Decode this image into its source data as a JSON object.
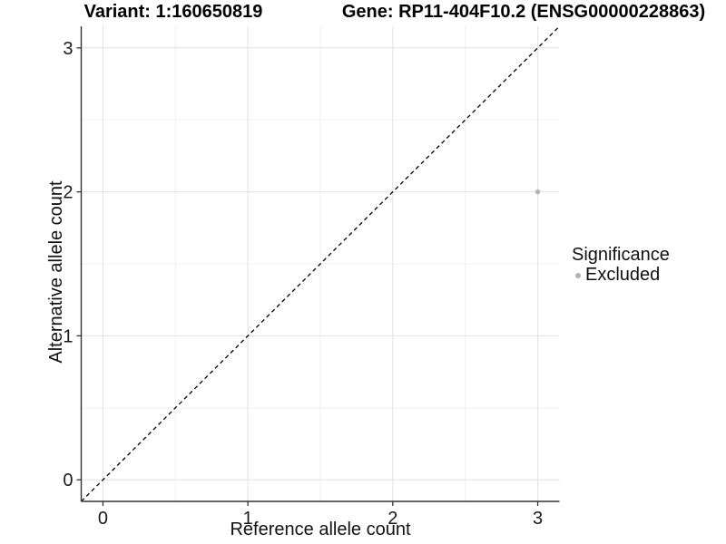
{
  "header": {
    "variant_title": "Variant: 1:160650819",
    "gene_title": "Gene: RP11-404F10.2 (ENSG00000228863)"
  },
  "chart_data": {
    "type": "scatter",
    "xlabel": "Reference allele count",
    "ylabel": "Alternative allele count",
    "xlim": [
      -0.15,
      3.15
    ],
    "ylim": [
      -0.15,
      3.15
    ],
    "x_ticks": [
      0,
      1,
      2,
      3
    ],
    "y_ticks": [
      0,
      1,
      2,
      3
    ],
    "x_minor_ticks": [
      0.5,
      1.5,
      2.5
    ],
    "y_minor_ticks": [
      0.5,
      1.5,
      2.5
    ],
    "grid": "on",
    "reference_line": {
      "kind": "identity",
      "slope": 1,
      "intercept": 0,
      "style": "dashed",
      "color": "#000000"
    },
    "series": [
      {
        "name": "Excluded",
        "color": "#b3b3b3",
        "points": [
          {
            "x": 3,
            "y": 2
          }
        ]
      }
    ],
    "legend": {
      "title": "Significance",
      "position": "right",
      "items": [
        {
          "label": "Excluded",
          "color": "#b3b3b3"
        }
      ]
    }
  },
  "colors": {
    "background": "#ffffff",
    "axis_line": "#333333",
    "tick_mark": "#333333",
    "tick_text": "#1a1a1a",
    "grid_major": "#e4e4e4",
    "grid_minor": "#f0f0f0",
    "point": "#b3b3b3",
    "reference_line": "#000000"
  }
}
